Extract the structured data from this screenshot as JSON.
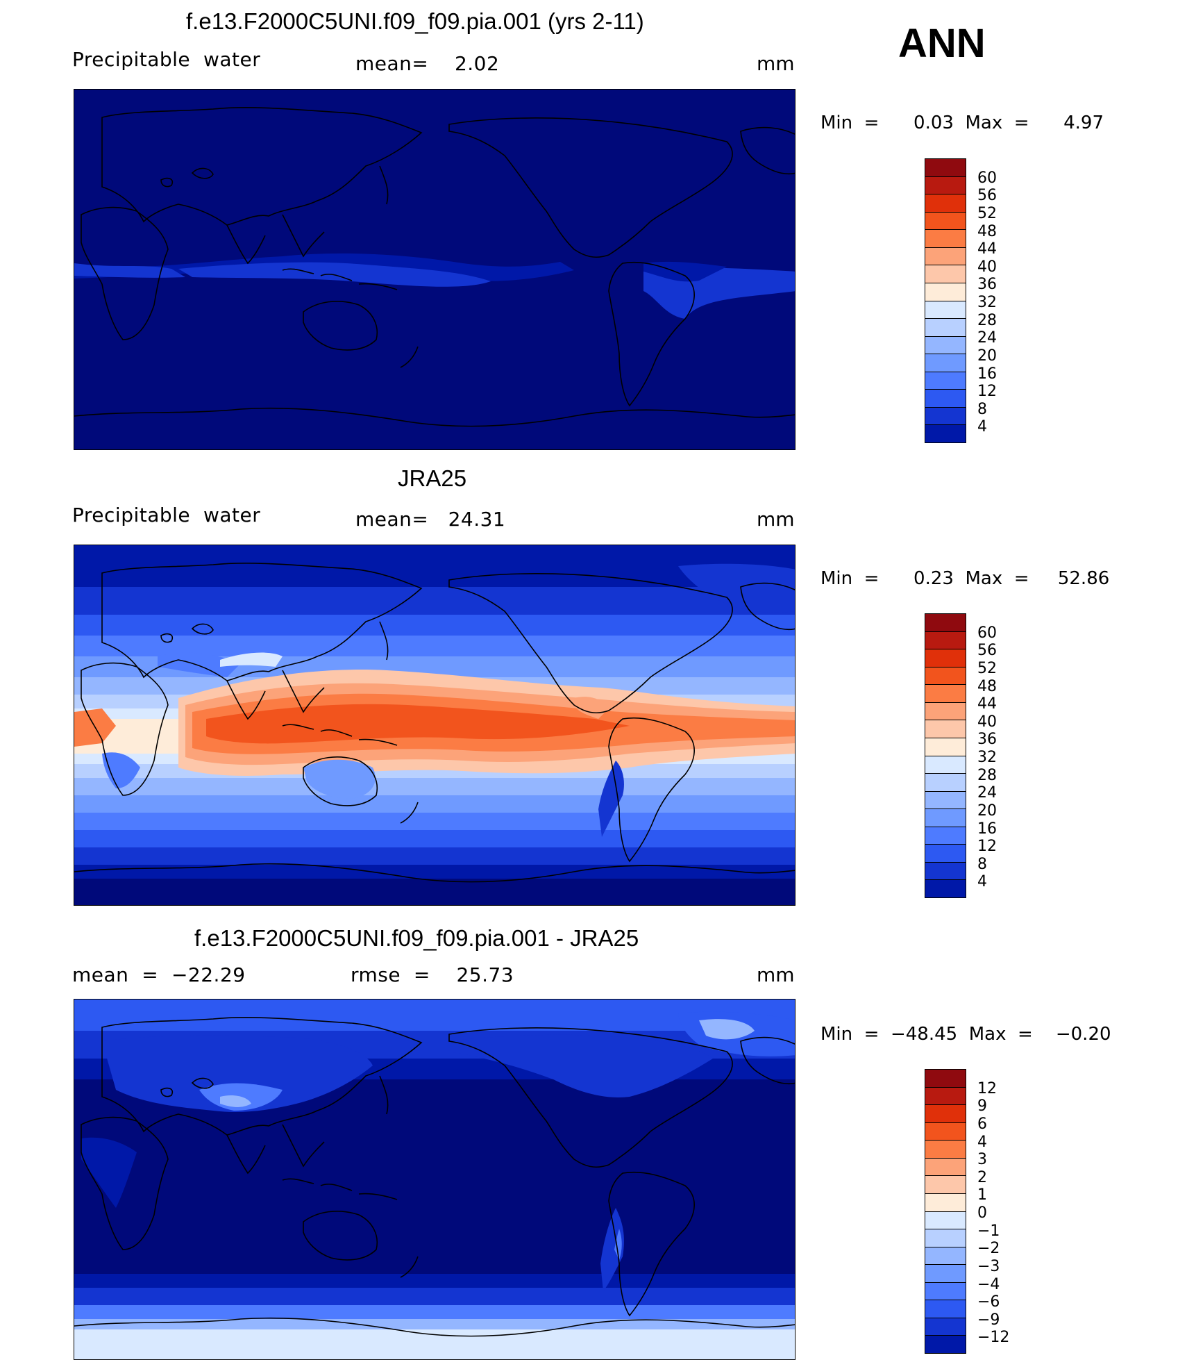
{
  "season": "ANN",
  "colors": {
    "ocean_dark": "#00097a",
    "coast": "#000000",
    "background": "#ffffff"
  },
  "panels": [
    {
      "title": "f.e13.F2000C5UNI.f09_f09.pia.001 (yrs 2-11)",
      "left_label": "Precipitable  water",
      "center_label": "mean=    2.02",
      "units": "mm",
      "minmax": "Min  =      0.03  Max  =      4.97",
      "colorbar_colors": [
        "#8f0a0f",
        "#b81a10",
        "#e0300a",
        "#f2541d",
        "#fb7c44",
        "#fca379",
        "#fdc7aa",
        "#feecd9",
        "#d9e9ff",
        "#b8d0ff",
        "#94b6ff",
        "#6f9aff",
        "#4e7bff",
        "#2d59f2",
        "#1435d1",
        "#0018a8",
        "#00097a"
      ],
      "colorbar_labels": [
        "60",
        "56",
        "52",
        "48",
        "44",
        "40",
        "36",
        "32",
        "28",
        "24",
        "20",
        "16",
        "12",
        "8",
        "4"
      ]
    },
    {
      "title": "JRA25",
      "left_label": "Precipitable  water",
      "center_label": "mean=   24.31",
      "units": "mm",
      "minmax": "Min  =      0.23  Max  =     52.86",
      "colorbar_colors": [
        "#8f0a0f",
        "#b81a10",
        "#e0300a",
        "#f2541d",
        "#fb7c44",
        "#fca379",
        "#fdc7aa",
        "#feecd9",
        "#d9e9ff",
        "#b8d0ff",
        "#94b6ff",
        "#6f9aff",
        "#4e7bff",
        "#2d59f2",
        "#1435d1",
        "#0018a8",
        "#00097a"
      ],
      "colorbar_labels": [
        "60",
        "56",
        "52",
        "48",
        "44",
        "40",
        "36",
        "32",
        "28",
        "24",
        "20",
        "16",
        "12",
        "8",
        "4"
      ]
    },
    {
      "title": "f.e13.F2000C5UNI.f09_f09.pia.001 - JRA25",
      "left_label": "mean  =  −22.29",
      "center_label": "rmse  =    25.73",
      "units": "mm",
      "minmax": "Min  =  −48.45  Max  =    −0.20",
      "colorbar_colors": [
        "#8f0a0f",
        "#b81a10",
        "#e0300a",
        "#f2541d",
        "#fb7c44",
        "#fca379",
        "#fdc7aa",
        "#feecd9",
        "#d9e9ff",
        "#b8d0ff",
        "#94b6ff",
        "#6f9aff",
        "#4e7bff",
        "#2d59f2",
        "#1435d1",
        "#0018a8",
        "#00097a"
      ],
      "colorbar_labels": [
        "12",
        "9",
        "6",
        "4",
        "3",
        "2",
        "1",
        "0",
        "−1",
        "−2",
        "−3",
        "−4",
        "−6",
        "−9",
        "−12"
      ]
    }
  ]
}
